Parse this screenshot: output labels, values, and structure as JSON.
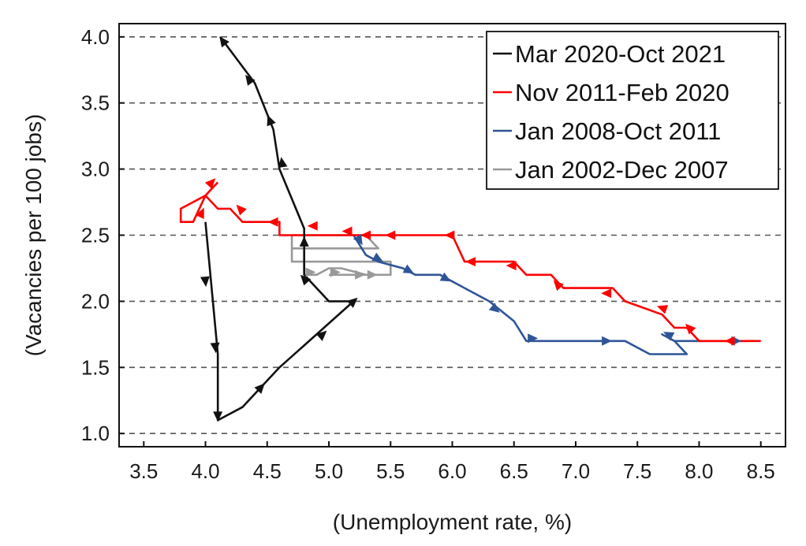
{
  "chart_data": {
    "type": "line",
    "title": "",
    "xlabel": "(Unemployment rate, %)",
    "ylabel": "(Vacancies per 100 jobs)",
    "xlim": [
      3.3,
      8.7
    ],
    "ylim": [
      0.9,
      4.1
    ],
    "xticks": [
      3.5,
      4.0,
      4.5,
      5.0,
      5.5,
      6.0,
      6.5,
      7.0,
      7.5,
      8.0,
      8.5
    ],
    "xtick_labels": [
      "3.5",
      "4.0",
      "4.5",
      "5.0",
      "5.5",
      "6.0",
      "6.5",
      "7.0",
      "7.5",
      "8.0",
      "8.5"
    ],
    "yticks": [
      1.0,
      1.5,
      2.0,
      2.5,
      3.0,
      3.5,
      4.0
    ],
    "ytick_labels": [
      "1.0",
      "1.5",
      "2.0",
      "2.5",
      "3.0",
      "3.5",
      "4.0"
    ],
    "grid": "horizontal-dashed",
    "legend_position": "top-right",
    "series": [
      {
        "name": "Jan 2002-Dec 2007",
        "color": "#999999",
        "x": [
          5.0,
          5.5,
          5.5,
          4.8,
          4.7,
          4.7,
          5.4,
          5.3,
          5.1,
          4.8,
          4.7,
          4.7,
          4.8,
          4.8,
          4.9,
          5.0,
          5.1,
          5.3,
          5.4,
          5.5
        ],
        "y": [
          2.2,
          2.2,
          2.3,
          2.3,
          2.3,
          2.4,
          2.4,
          2.5,
          2.5,
          2.5,
          2.5,
          2.4,
          2.4,
          2.2,
          2.2,
          2.25,
          2.25,
          2.2,
          2.2,
          2.2
        ],
        "arrows": [
          [
            4.85,
            2.22
          ],
          [
            5.05,
            2.22
          ],
          [
            5.25,
            2.2
          ],
          [
            5.35,
            2.2
          ]
        ]
      },
      {
        "name": "Jan 2008-Oct 2011",
        "color": "#2f5597",
        "x": [
          5.2,
          5.3,
          5.4,
          5.6,
          5.7,
          5.9,
          6.1,
          6.3,
          6.5,
          6.6,
          7.0,
          7.4,
          7.6,
          7.9,
          7.8,
          7.7,
          7.8,
          8.1,
          8.4
        ],
        "y": [
          2.5,
          2.35,
          2.3,
          2.25,
          2.2,
          2.2,
          2.1,
          2.0,
          1.85,
          1.7,
          1.7,
          1.7,
          1.6,
          1.6,
          1.7,
          1.75,
          1.7,
          1.7,
          1.7
        ],
        "arrows": [
          [
            5.25,
            2.46
          ],
          [
            5.4,
            2.32
          ],
          [
            5.65,
            2.23
          ],
          [
            5.95,
            2.17
          ],
          [
            6.35,
            1.94
          ],
          [
            6.65,
            1.72
          ],
          [
            7.25,
            1.7
          ],
          [
            7.75,
            1.75
          ],
          [
            8.3,
            1.7
          ]
        ]
      },
      {
        "name": "Nov 2011-Feb 2020",
        "color": "#ff0000",
        "x": [
          8.5,
          8.0,
          7.9,
          7.8,
          7.7,
          7.4,
          7.3,
          6.9,
          6.8,
          6.6,
          6.5,
          6.1,
          6.0,
          5.0,
          4.6,
          4.6,
          4.3,
          4.2,
          4.1,
          4.0,
          3.8,
          3.8,
          3.9,
          4.0,
          4.1
        ],
        "y": [
          1.7,
          1.7,
          1.8,
          1.8,
          1.9,
          2.0,
          2.1,
          2.1,
          2.2,
          2.2,
          2.3,
          2.3,
          2.5,
          2.5,
          2.5,
          2.6,
          2.6,
          2.7,
          2.7,
          2.8,
          2.7,
          2.6,
          2.6,
          2.8,
          2.9
        ],
        "arrows": [
          [
            8.25,
            1.7
          ],
          [
            7.92,
            1.8
          ],
          [
            7.7,
            1.95
          ],
          [
            7.25,
            2.06
          ],
          [
            6.85,
            2.13
          ],
          [
            6.48,
            2.27
          ],
          [
            6.15,
            2.3
          ],
          [
            5.98,
            2.5
          ],
          [
            5.5,
            2.5
          ],
          [
            5.3,
            2.5
          ],
          [
            5.15,
            2.53
          ],
          [
            4.87,
            2.57
          ],
          [
            4.55,
            2.6
          ],
          [
            4.28,
            2.7
          ],
          [
            4.05,
            2.9
          ],
          [
            3.97,
            2.67
          ]
        ]
      },
      {
        "name": "Mar 2020-Oct 2021",
        "color": "#111111",
        "x": [
          4.0,
          4.1,
          4.1,
          4.3,
          4.6,
          4.9,
          5.2,
          5.0,
          4.8,
          4.8,
          4.6,
          4.55,
          4.4,
          4.2,
          4.12
        ],
        "y": [
          2.6,
          1.6,
          1.1,
          1.2,
          1.5,
          1.75,
          2.0,
          2.0,
          2.2,
          2.55,
          3.0,
          3.3,
          3.65,
          3.9,
          4.0
        ],
        "arrows": [
          [
            4.0,
            2.15
          ],
          [
            4.08,
            1.65
          ],
          [
            4.1,
            1.13
          ],
          [
            4.45,
            1.35
          ],
          [
            4.95,
            1.75
          ],
          [
            5.2,
            2.0
          ],
          [
            4.8,
            2.17
          ],
          [
            4.8,
            2.45
          ],
          [
            4.62,
            3.05
          ],
          [
            4.52,
            3.37
          ],
          [
            4.35,
            3.68
          ],
          [
            4.14,
            3.97
          ]
        ]
      }
    ],
    "legend_order": [
      "Mar 2020-Oct 2021",
      "Nov 2011-Feb 2020",
      "Jan 2008-Oct 2011",
      "Jan 2002-Dec 2007"
    ]
  }
}
